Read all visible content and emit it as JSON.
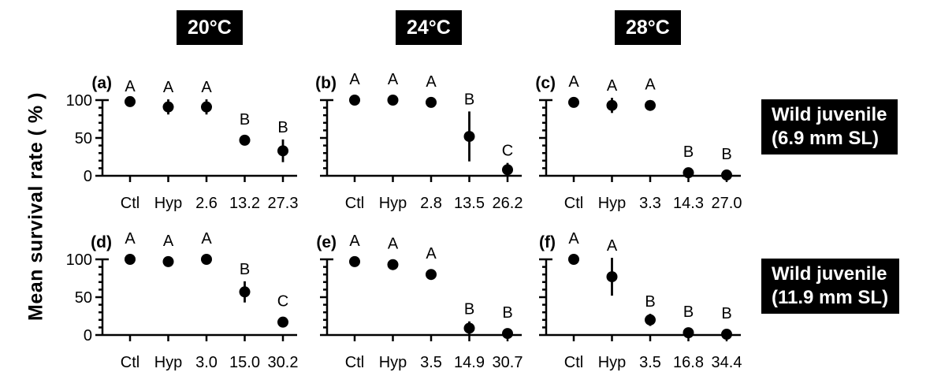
{
  "figure_colors": {
    "foreground": "#000000",
    "background": "#ffffff",
    "header_bg": "#000000",
    "header_text": "#ffffff"
  },
  "y_axis": {
    "title": "Mean survival rate ( % )"
  },
  "columns": [
    {
      "header": "20°C"
    },
    {
      "header": "24°C"
    },
    {
      "header": "28°C"
    }
  ],
  "rows": [
    {
      "label_line1": "Wild juvenile",
      "label_line2": "(6.9 mm SL)"
    },
    {
      "label_line1": "Wild juvenile",
      "label_line2": "(11.9 mm SL)"
    }
  ],
  "chart_data": {
    "type": "scatter",
    "title": "",
    "xlabel": "",
    "ylabel": "Mean survival rate ( % )",
    "ylim": [
      0,
      100
    ],
    "y_ticks": [
      0,
      50,
      100
    ],
    "y_minor_tick_step": 10,
    "grid": false,
    "legend_position": "none",
    "error_bars": true,
    "panels": [
      {
        "label": "(a)",
        "temperature": "20°C",
        "size_group": "Wild juvenile (6.9 mm SL)",
        "row": 0,
        "col": 0,
        "show_y_tick_labels": true,
        "categories": [
          "Ctl",
          "Hyp",
          "2.6",
          "13.2",
          "27.3"
        ],
        "values": [
          98,
          91,
          91,
          47,
          33
        ],
        "errors": [
          4,
          10,
          10,
          0,
          15
        ],
        "sig_letters": [
          "A",
          "A",
          "A",
          "B",
          "B"
        ]
      },
      {
        "label": "(b)",
        "temperature": "24°C",
        "size_group": "Wild juvenile (6.9 mm SL)",
        "row": 0,
        "col": 1,
        "show_y_tick_labels": false,
        "categories": [
          "Ctl",
          "Hyp",
          "2.8",
          "13.5",
          "26.2"
        ],
        "values": [
          100,
          100,
          97,
          52,
          8
        ],
        "errors": [
          0,
          0,
          0,
          33,
          9
        ],
        "sig_letters": [
          "A",
          "A",
          "A",
          "B",
          "C"
        ]
      },
      {
        "label": "(c)",
        "temperature": "28°C",
        "size_group": "Wild juvenile (6.9 mm SL)",
        "row": 0,
        "col": 2,
        "show_y_tick_labels": false,
        "categories": [
          "Ctl",
          "Hyp",
          "3.3",
          "14.3",
          "27.0"
        ],
        "values": [
          97,
          93,
          93,
          4,
          1
        ],
        "errors": [
          0,
          10,
          0,
          0,
          0
        ],
        "sig_letters": [
          "A",
          "A",
          "A",
          "B",
          "B"
        ]
      },
      {
        "label": "(d)",
        "temperature": "20°C",
        "size_group": "Wild juvenile (11.9 mm SL)",
        "row": 1,
        "col": 0,
        "show_y_tick_labels": true,
        "categories": [
          "Ctl",
          "Hyp",
          "3.0",
          "15.0",
          "30.2"
        ],
        "values": [
          100,
          97,
          100,
          57,
          17
        ],
        "errors": [
          0,
          0,
          0,
          14,
          0
        ],
        "sig_letters": [
          "A",
          "A",
          "A",
          "B",
          "C"
        ]
      },
      {
        "label": "(e)",
        "temperature": "24°C",
        "size_group": "Wild juvenile (11.9 mm SL)",
        "row": 1,
        "col": 1,
        "show_y_tick_labels": false,
        "categories": [
          "Ctl",
          "Hyp",
          "3.5",
          "14.9",
          "30.7"
        ],
        "values": [
          97,
          93,
          80,
          9,
          2
        ],
        "errors": [
          0,
          0,
          0,
          9,
          0
        ],
        "sig_letters": [
          "A",
          "A",
          "A",
          "B",
          "B"
        ]
      },
      {
        "label": "(f)",
        "temperature": "28°C",
        "size_group": "Wild juvenile (11.9 mm SL)",
        "row": 1,
        "col": 2,
        "show_y_tick_labels": false,
        "categories": [
          "Ctl",
          "Hyp",
          "3.5",
          "16.8",
          "34.4"
        ],
        "values": [
          100,
          77,
          20,
          3,
          1
        ],
        "errors": [
          0,
          25,
          8,
          0,
          0
        ],
        "sig_letters": [
          "A",
          "A",
          "B",
          "B",
          "B"
        ]
      }
    ]
  }
}
